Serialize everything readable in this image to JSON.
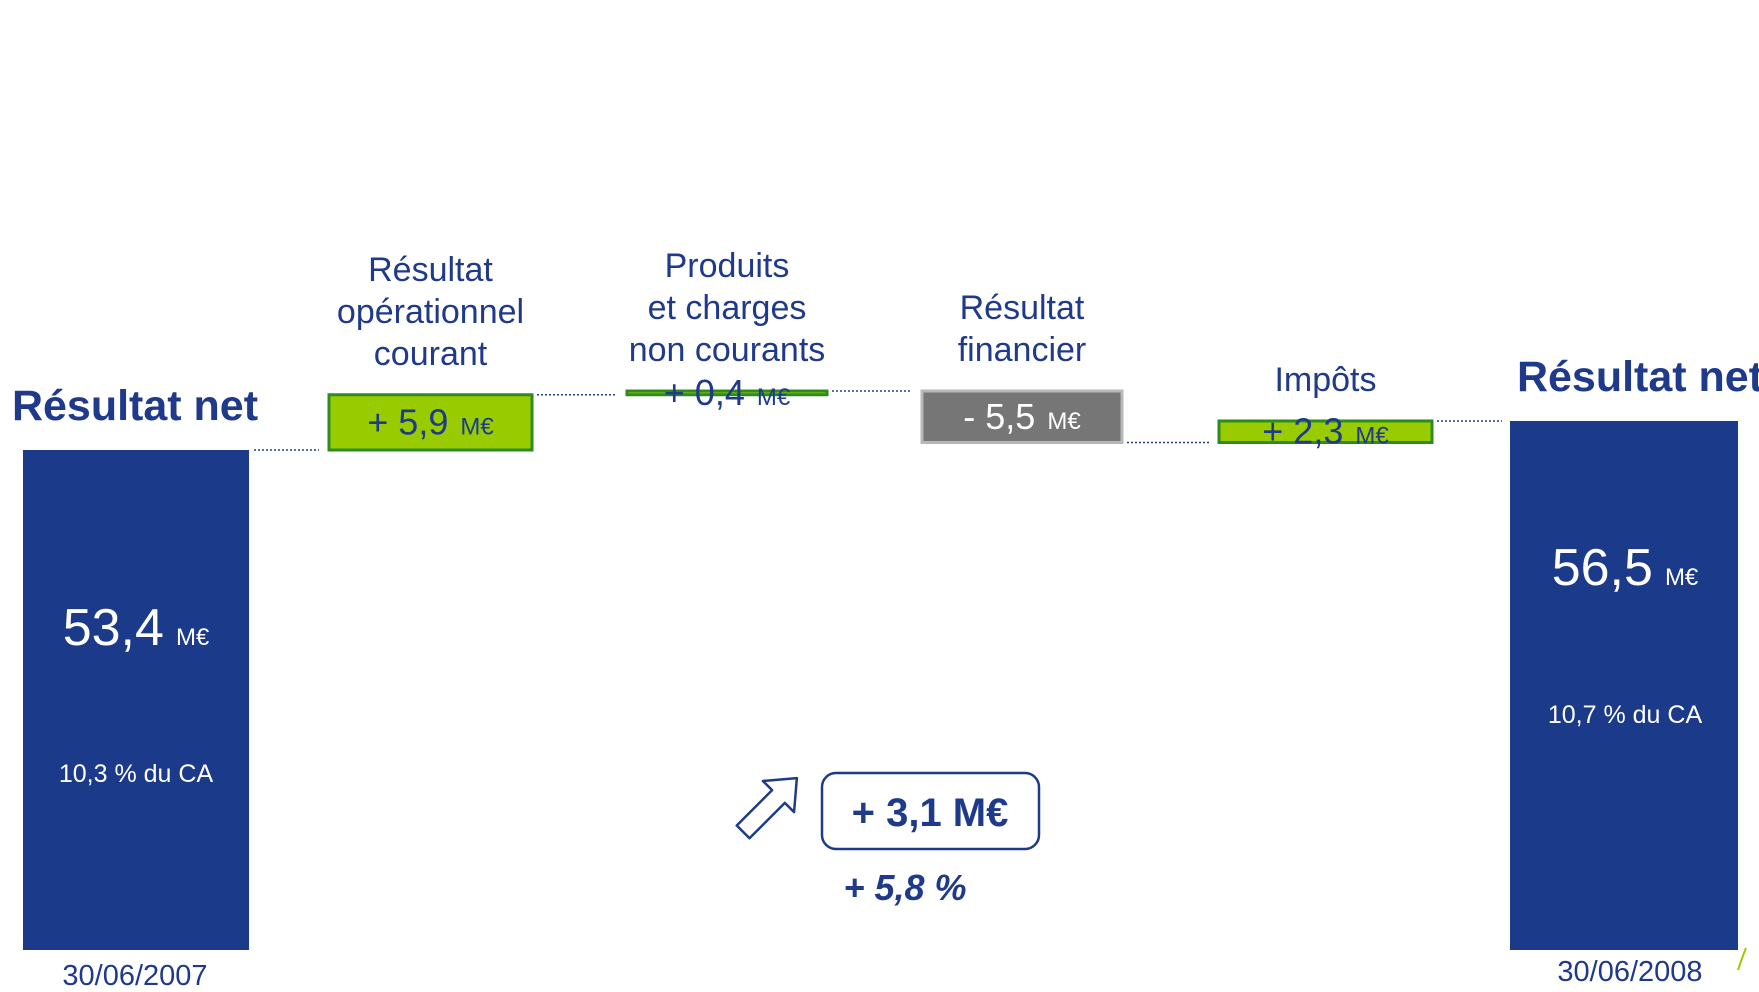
{
  "chart_data": {
    "type": "bar",
    "subtype": "waterfall",
    "unit": "M€",
    "ylim": [
      0,
      61
    ],
    "start": {
      "title": "Résultat net",
      "value": 53.4,
      "value_label": "53,4",
      "unit": "M€",
      "pct_label": "10,3 % du CA",
      "date": "30/06/2007"
    },
    "steps": [
      {
        "label_lines": [
          "Résultat",
          "opérationnel",
          "courant"
        ],
        "value": 5.9,
        "value_label": "+ 5,9",
        "unit": "M€",
        "color": "#99cc00"
      },
      {
        "label_lines": [
          "Produits",
          "et charges",
          "non courants"
        ],
        "value": 0.4,
        "value_label": "+ 0,4",
        "unit": "M€",
        "color": "#99cc00"
      },
      {
        "label_lines": [
          "Résultat",
          "financier"
        ],
        "value": -5.5,
        "value_label": "- 5,5",
        "unit": "M€",
        "color": "#767676"
      },
      {
        "label_lines": [
          "Impôts"
        ],
        "value": 2.3,
        "value_label": "+ 2,3",
        "unit": "M€",
        "color": "#99cc00"
      }
    ],
    "end": {
      "title": "Résultat net",
      "value": 56.5,
      "value_label": "56,5",
      "unit": "M€",
      "pct_label": "10,7 % du CA",
      "date": "30/06/2008"
    },
    "variation": {
      "amount_label": "+ 3,1 M€",
      "pct_label": "+ 5,8 %"
    },
    "colors": {
      "total": "#1c3a8a",
      "positive": "#99cc00",
      "positive_border": "#2e8b1f",
      "negative": "#767676",
      "negative_border": "#b8b8b8",
      "text": "#1f3a8a"
    }
  }
}
